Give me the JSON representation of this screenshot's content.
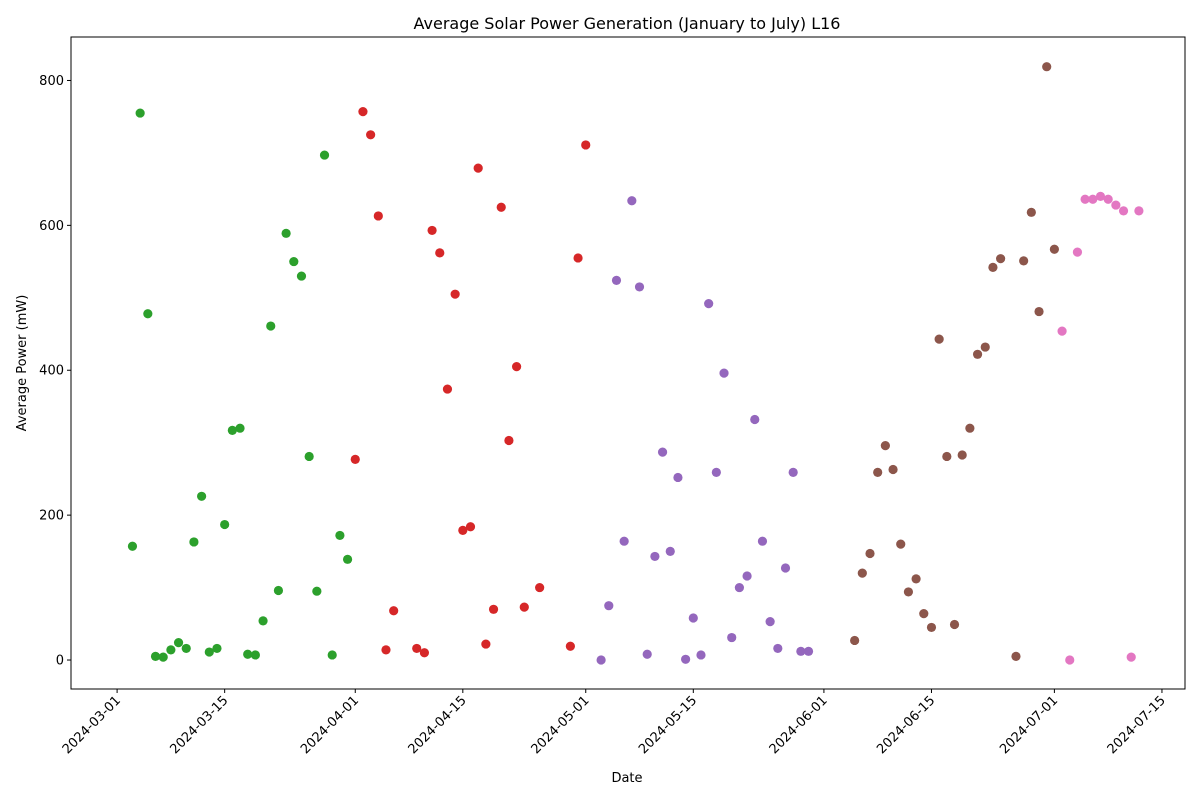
{
  "chart_data": {
    "type": "scatter",
    "title": "Average Solar Power Generation (January to July) L16",
    "xlabel": "Date",
    "ylabel": "Average Power (mW)",
    "x_axis_type": "date",
    "xlim": [
      "2024-02-24",
      "2024-07-18"
    ],
    "ylim": [
      -40,
      860
    ],
    "x_ticks": [
      "2024-03-01",
      "2024-03-15",
      "2024-04-01",
      "2024-04-15",
      "2024-05-01",
      "2024-05-15",
      "2024-06-01",
      "2024-06-15",
      "2024-07-01",
      "2024-07-15"
    ],
    "y_ticks": [
      0,
      200,
      400,
      600,
      800
    ],
    "grid": false,
    "legend": "none",
    "series": [
      {
        "color": "#2ca02c",
        "points": [
          [
            "2024-03-03",
            157
          ],
          [
            "2024-03-04",
            755
          ],
          [
            "2024-03-05",
            478
          ],
          [
            "2024-03-06",
            5
          ],
          [
            "2024-03-07",
            4
          ],
          [
            "2024-03-08",
            14
          ],
          [
            "2024-03-09",
            24
          ],
          [
            "2024-03-10",
            16
          ],
          [
            "2024-03-11",
            163
          ],
          [
            "2024-03-12",
            226
          ],
          [
            "2024-03-13",
            11
          ],
          [
            "2024-03-14",
            16
          ],
          [
            "2024-03-15",
            187
          ],
          [
            "2024-03-16",
            317
          ],
          [
            "2024-03-17",
            320
          ],
          [
            "2024-03-18",
            8
          ],
          [
            "2024-03-19",
            7
          ],
          [
            "2024-03-20",
            54
          ],
          [
            "2024-03-21",
            461
          ],
          [
            "2024-03-22",
            96
          ],
          [
            "2024-03-23",
            589
          ],
          [
            "2024-03-24",
            550
          ],
          [
            "2024-03-25",
            530
          ],
          [
            "2024-03-26",
            281
          ],
          [
            "2024-03-27",
            95
          ],
          [
            "2024-03-28",
            697
          ],
          [
            "2024-03-29",
            7
          ],
          [
            "2024-03-30",
            172
          ],
          [
            "2024-03-31",
            139
          ]
        ]
      },
      {
        "color": "#d62728",
        "points": [
          [
            "2024-04-01",
            277
          ],
          [
            "2024-04-02",
            757
          ],
          [
            "2024-04-03",
            725
          ],
          [
            "2024-04-04",
            613
          ],
          [
            "2024-04-05",
            14
          ],
          [
            "2024-04-06",
            68
          ],
          [
            "2024-04-09",
            16
          ],
          [
            "2024-04-10",
            10
          ],
          [
            "2024-04-11",
            593
          ],
          [
            "2024-04-12",
            562
          ],
          [
            "2024-04-13",
            374
          ],
          [
            "2024-04-14",
            505
          ],
          [
            "2024-04-15",
            179
          ],
          [
            "2024-04-16",
            184
          ],
          [
            "2024-04-17",
            679
          ],
          [
            "2024-04-18",
            22
          ],
          [
            "2024-04-19",
            70
          ],
          [
            "2024-04-20",
            625
          ],
          [
            "2024-04-21",
            303
          ],
          [
            "2024-04-22",
            405
          ],
          [
            "2024-04-23",
            73
          ],
          [
            "2024-04-25",
            100
          ],
          [
            "2024-04-29",
            19
          ],
          [
            "2024-04-30",
            555
          ],
          [
            "2024-05-01",
            711
          ]
        ]
      },
      {
        "color": "#9467bd",
        "points": [
          [
            "2024-05-03",
            0
          ],
          [
            "2024-05-04",
            75
          ],
          [
            "2024-05-05",
            524
          ],
          [
            "2024-05-06",
            164
          ],
          [
            "2024-05-07",
            634
          ],
          [
            "2024-05-08",
            515
          ],
          [
            "2024-05-09",
            8
          ],
          [
            "2024-05-10",
            143
          ],
          [
            "2024-05-11",
            287
          ],
          [
            "2024-05-12",
            150
          ],
          [
            "2024-05-13",
            252
          ],
          [
            "2024-05-14",
            1
          ],
          [
            "2024-05-15",
            58
          ],
          [
            "2024-05-16",
            7
          ],
          [
            "2024-05-17",
            492
          ],
          [
            "2024-05-18",
            259
          ],
          [
            "2024-05-19",
            396
          ],
          [
            "2024-05-20",
            31
          ],
          [
            "2024-05-21",
            100
          ],
          [
            "2024-05-22",
            116
          ],
          [
            "2024-05-23",
            332
          ],
          [
            "2024-05-24",
            164
          ],
          [
            "2024-05-25",
            53
          ],
          [
            "2024-05-26",
            16
          ],
          [
            "2024-05-27",
            127
          ],
          [
            "2024-05-28",
            259
          ],
          [
            "2024-05-29",
            12
          ],
          [
            "2024-05-30",
            12
          ]
        ]
      },
      {
        "color": "#8c564b",
        "points": [
          [
            "2024-06-05",
            27
          ],
          [
            "2024-06-06",
            120
          ],
          [
            "2024-06-07",
            147
          ],
          [
            "2024-06-08",
            259
          ],
          [
            "2024-06-09",
            296
          ],
          [
            "2024-06-10",
            263
          ],
          [
            "2024-06-11",
            160
          ],
          [
            "2024-06-12",
            94
          ],
          [
            "2024-06-13",
            112
          ],
          [
            "2024-06-14",
            64
          ],
          [
            "2024-06-15",
            45
          ],
          [
            "2024-06-16",
            443
          ],
          [
            "2024-06-17",
            281
          ],
          [
            "2024-06-18",
            49
          ],
          [
            "2024-06-19",
            283
          ],
          [
            "2024-06-20",
            320
          ],
          [
            "2024-06-21",
            422
          ],
          [
            "2024-06-22",
            432
          ],
          [
            "2024-06-23",
            542
          ],
          [
            "2024-06-24",
            554
          ],
          [
            "2024-06-26",
            5
          ],
          [
            "2024-06-27",
            551
          ],
          [
            "2024-06-28",
            618
          ],
          [
            "2024-06-29",
            481
          ],
          [
            "2024-06-30",
            819
          ],
          [
            "2024-07-01",
            567
          ]
        ]
      },
      {
        "color": "#e377c2",
        "points": [
          [
            "2024-07-02",
            454
          ],
          [
            "2024-07-03",
            0
          ],
          [
            "2024-07-04",
            563
          ],
          [
            "2024-07-05",
            636
          ],
          [
            "2024-07-06",
            636
          ],
          [
            "2024-07-07",
            640
          ],
          [
            "2024-07-08",
            636
          ],
          [
            "2024-07-09",
            628
          ],
          [
            "2024-07-10",
            620
          ],
          [
            "2024-07-11",
            4
          ],
          [
            "2024-07-12",
            620
          ]
        ]
      }
    ]
  }
}
